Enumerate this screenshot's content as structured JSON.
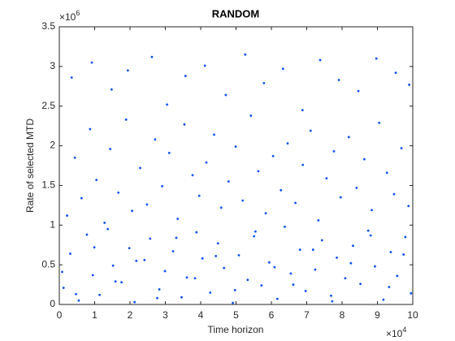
{
  "chart_data": {
    "type": "scatter",
    "title": "RANDOM",
    "x_label": "Time horizon",
    "y_label": "Rate of selected MTD",
    "x_exponent": {
      "base": "×10",
      "power": "4"
    },
    "y_exponent": {
      "base": "×10",
      "power": "6"
    },
    "color": "#0a4ff0",
    "xlim": [
      0,
      10
    ],
    "xticks": [
      0,
      1,
      2,
      3,
      4,
      5,
      6,
      7,
      8,
      9,
      10
    ],
    "ylim": [
      0,
      3.5
    ],
    "yticks": [
      0,
      0.5,
      1,
      1.5,
      2,
      2.5,
      3,
      3.5
    ],
    "x": [
      0.12,
      0.31,
      0.55,
      0.78,
      0.95,
      1.14,
      1.37,
      1.52,
      1.76,
      1.98,
      2.13,
      2.41,
      2.57,
      2.83,
      2.99,
      3.22,
      3.46,
      3.61,
      3.88,
      4.05,
      4.27,
      4.49,
      4.66,
      4.91,
      5.08,
      5.33,
      5.51,
      5.72,
      5.94,
      6.17,
      6.38,
      6.55,
      6.81,
      6.97,
      7.24,
      7.43,
      7.69,
      7.85,
      8.09,
      8.31,
      8.52,
      8.74,
      8.93,
      9.17,
      9.38,
      9.56,
      9.79,
      9.95,
      0.22,
      0.44,
      0.63,
      0.87,
      1.05,
      1.28,
      1.44,
      1.67,
      1.89,
      2.06,
      2.29,
      2.48,
      2.71,
      2.91,
      3.11,
      3.35,
      3.54,
      3.77,
      3.96,
      4.16,
      4.38,
      4.58,
      4.79,
      4.99,
      5.19,
      5.42,
      5.63,
      5.84,
      6.05,
      6.27,
      6.46,
      6.68,
      6.89,
      7.11,
      7.33,
      7.56,
      7.77,
      7.96,
      8.19,
      8.41,
      8.63,
      8.84,
      9.05,
      9.27,
      9.47,
      9.68,
      9.88,
      0.35,
      0.92,
      1.48,
      1.94,
      2.62,
      3.05,
      3.57,
      4.12,
      4.71,
      5.26,
      5.79,
      6.33,
      6.88,
      7.38,
      7.91,
      8.46,
      8.97,
      9.52,
      9.9,
      0.08,
      0.47,
      0.99,
      1.59,
      2.18,
      2.77,
      3.31,
      3.84,
      4.43,
      4.97,
      5.55,
      6.09,
      6.62,
      7.18,
      7.72,
      8.25,
      8.81,
      9.33,
      9.74
    ],
    "values": [
      0.21,
      0.64,
      0.05,
      0.88,
      0.37,
      0.12,
      0.95,
      0.49,
      0.28,
      0.71,
      0.03,
      0.56,
      0.83,
      0.19,
      0.42,
      0.67,
      0.09,
      0.34,
      0.91,
      0.58,
      0.15,
      0.77,
      0.46,
      0.02,
      0.62,
      0.31,
      0.86,
      0.24,
      0.53,
      0.07,
      0.98,
      0.39,
      0.69,
      0.17,
      0.44,
      0.81,
      0.11,
      0.59,
      0.33,
      0.74,
      0.26,
      0.93,
      0.48,
      0.06,
      0.66,
      0.36,
      0.85,
      0.14,
      1.12,
      1.85,
      1.34,
      2.21,
      1.57,
      1.03,
      1.96,
      1.41,
      2.33,
      1.18,
      1.72,
      1.26,
      2.08,
      1.49,
      1.91,
      1.08,
      2.27,
      1.63,
      1.37,
      1.79,
      2.14,
      1.22,
      1.55,
      1.99,
      1.31,
      2.38,
      1.68,
      1.15,
      1.87,
      1.44,
      2.03,
      1.28,
      1.76,
      2.19,
      1.06,
      1.59,
      1.93,
      1.35,
      2.11,
      1.47,
      1.83,
      1.19,
      2.29,
      1.66,
      1.39,
      1.97,
      1.24,
      2.86,
      3.05,
      2.71,
      2.95,
      3.12,
      2.52,
      2.88,
      3.01,
      2.64,
      3.15,
      2.79,
      2.97,
      2.45,
      3.08,
      2.83,
      2.69,
      3.1,
      2.92,
      2.77,
      0.41,
      0.13,
      0.72,
      0.29,
      0.55,
      0.08,
      0.84,
      0.33,
      0.61,
      0.18,
      0.92,
      0.47,
      0.25,
      0.69,
      0.04,
      0.52,
      0.87,
      0.22,
      0.63
    ]
  }
}
